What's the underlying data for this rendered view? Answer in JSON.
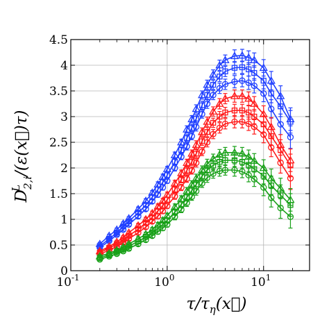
{
  "chart_data": {
    "type": "line",
    "xscale": "log",
    "xlim": [
      0.1,
      30
    ],
    "ylim": [
      0,
      4.5
    ],
    "grid": true,
    "xticks": [
      {
        "value": 0.1,
        "base": "10",
        "exp": "-1"
      },
      {
        "value": 1,
        "base": "10",
        "exp": "0"
      },
      {
        "value": 10,
        "base": "10",
        "exp": "1"
      }
    ],
    "yticks": [
      {
        "value": 0,
        "label": "0"
      },
      {
        "value": 0.5,
        "label": "0.5"
      },
      {
        "value": 1,
        "label": "1"
      },
      {
        "value": 1.5,
        "label": "1.5"
      },
      {
        "value": 2,
        "label": "2"
      },
      {
        "value": 2.5,
        "label": "2.5"
      },
      {
        "value": 3,
        "label": "3"
      },
      {
        "value": 3.5,
        "label": "3.5"
      },
      {
        "value": 4,
        "label": "4"
      },
      {
        "value": 4.5,
        "label": "4.5"
      }
    ],
    "xlabel": "τ/τ_η(x⃗)",
    "ylabel": "D^L_{2,i}/(ε(x⃗)τ)",
    "series": [
      {
        "color": "#1f3fff",
        "marker": "triangle",
        "x": [
          0.2,
          0.25,
          0.3,
          0.35,
          0.4,
          0.5,
          0.6,
          0.7,
          0.8,
          0.9,
          1.0,
          1.2,
          1.4,
          1.6,
          1.8,
          2.0,
          2.3,
          2.6,
          3.0,
          3.5,
          4.0,
          5.0,
          6.0,
          7.0,
          8.0,
          10.0,
          12.0,
          15.0,
          19.0
        ],
        "y": [
          0.52,
          0.68,
          0.8,
          0.92,
          1.02,
          1.2,
          1.36,
          1.52,
          1.68,
          1.83,
          1.98,
          2.25,
          2.5,
          2.75,
          2.95,
          3.15,
          3.42,
          3.62,
          3.82,
          4.0,
          4.1,
          4.18,
          4.19,
          4.15,
          4.1,
          3.95,
          3.7,
          3.4,
          2.95
        ],
        "err": [
          0.03,
          0.03,
          0.03,
          0.03,
          0.03,
          0.04,
          0.04,
          0.04,
          0.05,
          0.05,
          0.05,
          0.06,
          0.06,
          0.07,
          0.07,
          0.08,
          0.08,
          0.09,
          0.09,
          0.1,
          0.1,
          0.12,
          0.12,
          0.13,
          0.14,
          0.16,
          0.18,
          0.2,
          0.22
        ]
      },
      {
        "color": "#1f3fff",
        "marker": "square",
        "x": [
          0.2,
          0.25,
          0.3,
          0.35,
          0.4,
          0.5,
          0.6,
          0.7,
          0.8,
          0.9,
          1.0,
          1.2,
          1.4,
          1.6,
          1.8,
          2.0,
          2.3,
          2.6,
          3.0,
          3.5,
          4.0,
          5.0,
          6.0,
          7.0,
          8.0,
          10.0,
          12.0,
          15.0,
          19.0
        ],
        "y": [
          0.48,
          0.62,
          0.74,
          0.86,
          0.96,
          1.13,
          1.28,
          1.43,
          1.58,
          1.72,
          1.86,
          2.12,
          2.35,
          2.58,
          2.78,
          2.96,
          3.22,
          3.42,
          3.62,
          3.78,
          3.88,
          3.95,
          3.96,
          3.92,
          3.85,
          3.7,
          3.45,
          3.2,
          2.9
        ],
        "err": [
          0.03,
          0.03,
          0.03,
          0.03,
          0.03,
          0.04,
          0.04,
          0.04,
          0.05,
          0.05,
          0.05,
          0.06,
          0.06,
          0.07,
          0.07,
          0.08,
          0.08,
          0.09,
          0.09,
          0.1,
          0.1,
          0.12,
          0.12,
          0.13,
          0.14,
          0.16,
          0.18,
          0.2,
          0.22
        ]
      },
      {
        "color": "#1f3fff",
        "marker": "circle",
        "x": [
          0.2,
          0.25,
          0.3,
          0.35,
          0.4,
          0.5,
          0.6,
          0.7,
          0.8,
          0.9,
          1.0,
          1.2,
          1.4,
          1.6,
          1.8,
          2.0,
          2.3,
          2.6,
          3.0,
          3.5,
          4.0,
          5.0,
          6.0,
          7.0,
          8.0,
          10.0,
          12.0,
          15.0,
          19.0
        ],
        "y": [
          0.45,
          0.58,
          0.7,
          0.8,
          0.9,
          1.06,
          1.2,
          1.35,
          1.48,
          1.62,
          1.75,
          2.0,
          2.22,
          2.42,
          2.62,
          2.8,
          3.05,
          3.25,
          3.42,
          3.55,
          3.63,
          3.68,
          3.7,
          3.66,
          3.6,
          3.45,
          3.15,
          2.85,
          2.6
        ],
        "err": [
          0.03,
          0.03,
          0.03,
          0.03,
          0.03,
          0.04,
          0.04,
          0.04,
          0.05,
          0.05,
          0.05,
          0.06,
          0.06,
          0.07,
          0.07,
          0.08,
          0.08,
          0.09,
          0.09,
          0.1,
          0.1,
          0.12,
          0.12,
          0.13,
          0.14,
          0.16,
          0.18,
          0.2,
          0.22
        ]
      },
      {
        "color": "#ff1a1a",
        "marker": "triangle",
        "x": [
          0.2,
          0.25,
          0.3,
          0.35,
          0.4,
          0.5,
          0.6,
          0.7,
          0.8,
          0.9,
          1.0,
          1.2,
          1.4,
          1.6,
          1.8,
          2.0,
          2.3,
          2.6,
          3.0,
          3.5,
          4.0,
          5.0,
          6.0,
          7.0,
          8.0,
          10.0,
          12.0,
          15.0,
          19.0
        ],
        "y": [
          0.38,
          0.47,
          0.56,
          0.65,
          0.74,
          0.88,
          1.0,
          1.12,
          1.25,
          1.36,
          1.48,
          1.7,
          1.9,
          2.1,
          2.28,
          2.45,
          2.7,
          2.9,
          3.1,
          3.25,
          3.35,
          3.4,
          3.4,
          3.35,
          3.25,
          3.05,
          2.8,
          2.45,
          2.15
        ],
        "err": [
          0.03,
          0.03,
          0.03,
          0.03,
          0.03,
          0.04,
          0.04,
          0.04,
          0.05,
          0.05,
          0.05,
          0.06,
          0.06,
          0.07,
          0.07,
          0.08,
          0.08,
          0.09,
          0.09,
          0.1,
          0.1,
          0.12,
          0.12,
          0.13,
          0.14,
          0.16,
          0.18,
          0.2,
          0.22
        ]
      },
      {
        "color": "#ff1a1a",
        "marker": "square",
        "x": [
          0.2,
          0.25,
          0.3,
          0.35,
          0.4,
          0.5,
          0.6,
          0.7,
          0.8,
          0.9,
          1.0,
          1.2,
          1.4,
          1.6,
          1.8,
          2.0,
          2.3,
          2.6,
          3.0,
          3.5,
          4.0,
          5.0,
          6.0,
          7.0,
          8.0,
          10.0,
          12.0,
          15.0,
          19.0
        ],
        "y": [
          0.35,
          0.44,
          0.52,
          0.6,
          0.68,
          0.81,
          0.93,
          1.04,
          1.16,
          1.27,
          1.38,
          1.58,
          1.77,
          1.95,
          2.12,
          2.28,
          2.52,
          2.7,
          2.88,
          3.0,
          3.08,
          3.12,
          3.12,
          3.08,
          3.0,
          2.85,
          2.62,
          2.35,
          2.05
        ],
        "err": [
          0.03,
          0.03,
          0.03,
          0.03,
          0.03,
          0.04,
          0.04,
          0.04,
          0.05,
          0.05,
          0.05,
          0.06,
          0.06,
          0.07,
          0.07,
          0.08,
          0.08,
          0.09,
          0.09,
          0.1,
          0.1,
          0.12,
          0.12,
          0.13,
          0.14,
          0.16,
          0.18,
          0.2,
          0.22
        ]
      },
      {
        "color": "#ff1a1a",
        "marker": "circle",
        "x": [
          0.2,
          0.25,
          0.3,
          0.35,
          0.4,
          0.5,
          0.6,
          0.7,
          0.8,
          0.9,
          1.0,
          1.2,
          1.4,
          1.6,
          1.8,
          2.0,
          2.3,
          2.6,
          3.0,
          3.5,
          4.0,
          5.0,
          6.0,
          7.0,
          8.0,
          10.0,
          12.0,
          15.0,
          19.0
        ],
        "y": [
          0.32,
          0.4,
          0.47,
          0.55,
          0.62,
          0.74,
          0.85,
          0.96,
          1.06,
          1.16,
          1.26,
          1.45,
          1.62,
          1.79,
          1.95,
          2.1,
          2.32,
          2.5,
          2.66,
          2.78,
          2.86,
          2.9,
          2.9,
          2.86,
          2.8,
          2.65,
          2.4,
          2.1,
          1.8
        ],
        "err": [
          0.03,
          0.03,
          0.03,
          0.03,
          0.03,
          0.04,
          0.04,
          0.04,
          0.05,
          0.05,
          0.05,
          0.06,
          0.06,
          0.07,
          0.07,
          0.08,
          0.08,
          0.09,
          0.09,
          0.1,
          0.1,
          0.12,
          0.12,
          0.13,
          0.14,
          0.16,
          0.18,
          0.2,
          0.22
        ]
      },
      {
        "color": "#18a018",
        "marker": "triangle",
        "x": [
          0.2,
          0.25,
          0.3,
          0.35,
          0.4,
          0.5,
          0.6,
          0.7,
          0.8,
          0.9,
          1.0,
          1.2,
          1.4,
          1.6,
          1.8,
          2.0,
          2.3,
          2.6,
          3.0,
          3.5,
          4.0,
          5.0,
          6.0,
          7.0,
          8.0,
          10.0,
          12.0,
          15.0,
          19.0
        ],
        "y": [
          0.28,
          0.34,
          0.4,
          0.46,
          0.52,
          0.62,
          0.71,
          0.8,
          0.89,
          0.98,
          1.07,
          1.24,
          1.4,
          1.55,
          1.68,
          1.8,
          1.96,
          2.08,
          2.18,
          2.26,
          2.3,
          2.3,
          2.28,
          2.22,
          2.14,
          2.0,
          1.8,
          1.6,
          1.38
        ],
        "err": [
          0.03,
          0.03,
          0.03,
          0.03,
          0.03,
          0.04,
          0.04,
          0.04,
          0.05,
          0.05,
          0.05,
          0.06,
          0.06,
          0.07,
          0.07,
          0.08,
          0.08,
          0.09,
          0.09,
          0.1,
          0.1,
          0.12,
          0.12,
          0.13,
          0.14,
          0.16,
          0.18,
          0.2,
          0.22
        ]
      },
      {
        "color": "#18a018",
        "marker": "square",
        "x": [
          0.2,
          0.25,
          0.3,
          0.35,
          0.4,
          0.5,
          0.6,
          0.7,
          0.8,
          0.9,
          1.0,
          1.2,
          1.4,
          1.6,
          1.8,
          2.0,
          2.3,
          2.6,
          3.0,
          3.5,
          4.0,
          5.0,
          6.0,
          7.0,
          8.0,
          10.0,
          12.0,
          15.0,
          19.0
        ],
        "y": [
          0.25,
          0.31,
          0.37,
          0.42,
          0.48,
          0.57,
          0.66,
          0.74,
          0.82,
          0.9,
          0.98,
          1.14,
          1.29,
          1.43,
          1.56,
          1.68,
          1.84,
          1.96,
          2.05,
          2.12,
          2.15,
          2.15,
          2.12,
          2.06,
          1.98,
          1.85,
          1.66,
          1.47,
          1.28
        ],
        "err": [
          0.03,
          0.03,
          0.03,
          0.03,
          0.03,
          0.04,
          0.04,
          0.04,
          0.05,
          0.05,
          0.05,
          0.06,
          0.06,
          0.07,
          0.07,
          0.08,
          0.08,
          0.09,
          0.09,
          0.1,
          0.1,
          0.12,
          0.12,
          0.13,
          0.14,
          0.16,
          0.18,
          0.2,
          0.22
        ]
      },
      {
        "color": "#18a018",
        "marker": "circle",
        "x": [
          0.2,
          0.25,
          0.3,
          0.35,
          0.4,
          0.5,
          0.6,
          0.7,
          0.8,
          0.9,
          1.0,
          1.2,
          1.4,
          1.6,
          1.8,
          2.0,
          2.3,
          2.6,
          3.0,
          3.5,
          4.0,
          5.0,
          6.0,
          7.0,
          8.0,
          10.0,
          12.0,
          15.0,
          19.0
        ],
        "y": [
          0.22,
          0.28,
          0.33,
          0.38,
          0.43,
          0.52,
          0.6,
          0.68,
          0.76,
          0.83,
          0.9,
          1.05,
          1.19,
          1.32,
          1.44,
          1.55,
          1.7,
          1.81,
          1.89,
          1.94,
          1.96,
          1.96,
          1.93,
          1.86,
          1.78,
          1.62,
          1.42,
          1.22,
          1.05
        ],
        "err": [
          0.03,
          0.03,
          0.03,
          0.03,
          0.03,
          0.04,
          0.04,
          0.04,
          0.05,
          0.05,
          0.05,
          0.06,
          0.06,
          0.07,
          0.07,
          0.08,
          0.08,
          0.09,
          0.09,
          0.1,
          0.1,
          0.12,
          0.12,
          0.13,
          0.14,
          0.16,
          0.18,
          0.2,
          0.22
        ]
      }
    ]
  }
}
